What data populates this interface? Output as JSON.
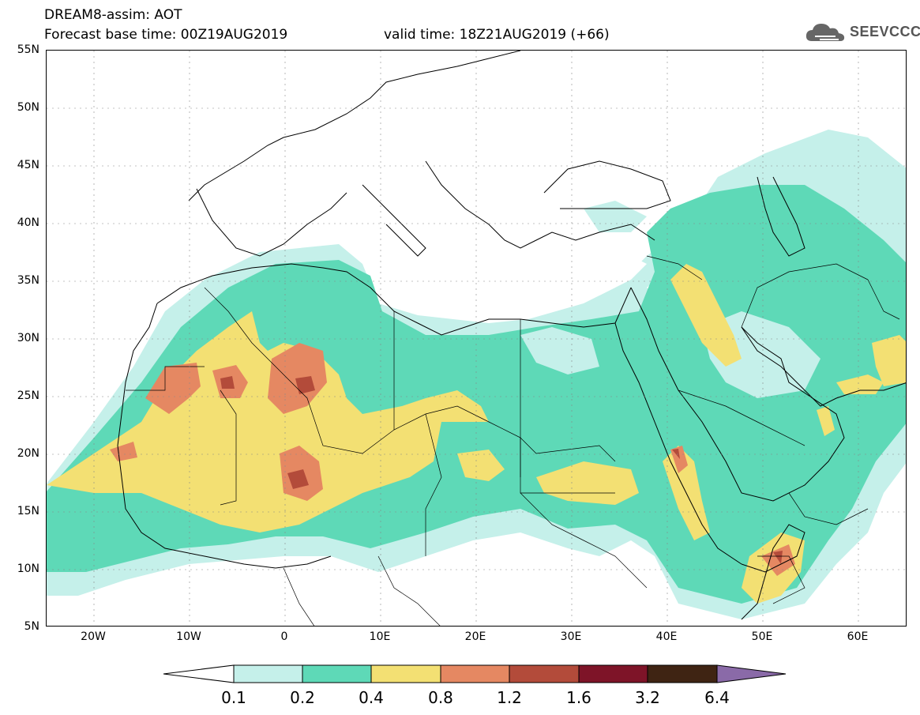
{
  "header": {
    "line1": "DREAM8-assim: AOT",
    "line2": "Forecast base time: 00Z19AUG2019",
    "valid": "valid time: 18Z21AUG2019 (+66)"
  },
  "logo": {
    "text": "SEEVCCC",
    "icon": "cloud-icon"
  },
  "map": {
    "extent": {
      "lon_min": -25,
      "lon_max": 65,
      "lat_min": 5,
      "lat_max": 55
    },
    "lat_labels": [
      "55N",
      "50N",
      "45N",
      "40N",
      "35N",
      "30N",
      "25N",
      "20N",
      "15N",
      "10N",
      "5N"
    ],
    "lon_labels": [
      "20W",
      "10W",
      "0",
      "10E",
      "20E",
      "30E",
      "40E",
      "50E",
      "60E"
    ],
    "gridlines": "dotted"
  },
  "colorbar": {
    "labels": [
      "0.1",
      "0.2",
      "0.4",
      "0.8",
      "1.2",
      "1.6",
      "3.2",
      "6.4"
    ],
    "colors": [
      "#c5f0ea",
      "#5ed9b7",
      "#f3e073",
      "#e58862",
      "#b34b3a",
      "#7e1428",
      "#3f2413",
      "#8a6aa8"
    ],
    "under_color": "#ffffff"
  },
  "legend_colors": {
    "c01": "#c5f0ea",
    "c02": "#5ed9b7",
    "c04": "#f3e073",
    "c08": "#e58862",
    "c12": "#b34b3a"
  }
}
